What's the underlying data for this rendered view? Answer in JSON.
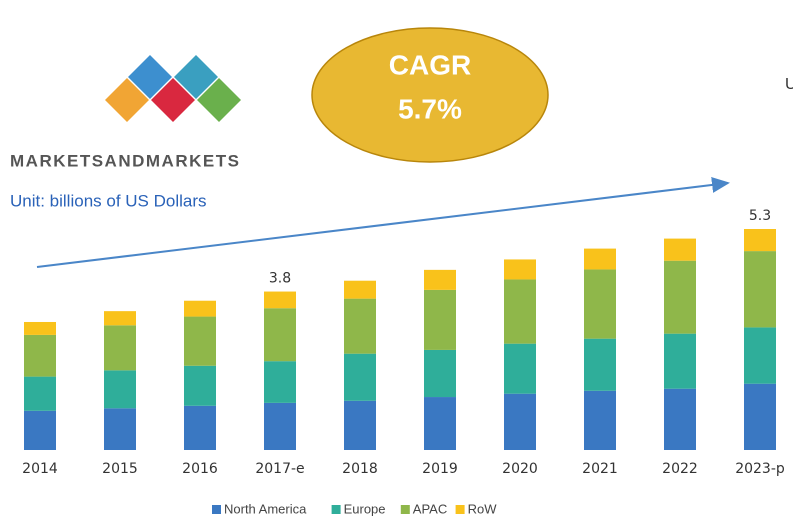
{
  "brand": "MARKETSANDMARKETS",
  "unit_note": "Unit: billions of US Dollars",
  "side_note": "U",
  "cagr": {
    "label": "CAGR",
    "value": "5.7%"
  },
  "chart_data": {
    "type": "stacked_bar",
    "categories": [
      "2014",
      "2015",
      "2016",
      "2017-e",
      "2018",
      "2019",
      "2020",
      "2021",
      "2022",
      "2023-p"
    ],
    "series": [
      {
        "name": "North America",
        "color": "#3a78c2",
        "values": [
          0.94,
          1.0,
          1.06,
          1.13,
          1.18,
          1.27,
          1.35,
          1.42,
          1.47,
          1.59
        ]
      },
      {
        "name": "Europe",
        "color": "#2fae9a",
        "values": [
          0.82,
          0.91,
          0.96,
          1.0,
          1.13,
          1.13,
          1.2,
          1.25,
          1.32,
          1.35
        ]
      },
      {
        "name": "APAC",
        "color": "#8fb74a",
        "values": [
          1.0,
          1.08,
          1.18,
          1.27,
          1.32,
          1.44,
          1.54,
          1.66,
          1.75,
          1.83
        ]
      },
      {
        "name": "RoW",
        "color": "#f9c21b",
        "values": [
          0.31,
          0.34,
          0.38,
          0.4,
          0.43,
          0.48,
          0.48,
          0.5,
          0.53,
          0.53
        ]
      }
    ],
    "totals": [
      {
        "category": "2017-e",
        "value": 3.8
      },
      {
        "category": "2023-p",
        "value": 5.3
      }
    ],
    "legend": "bottom"
  }
}
